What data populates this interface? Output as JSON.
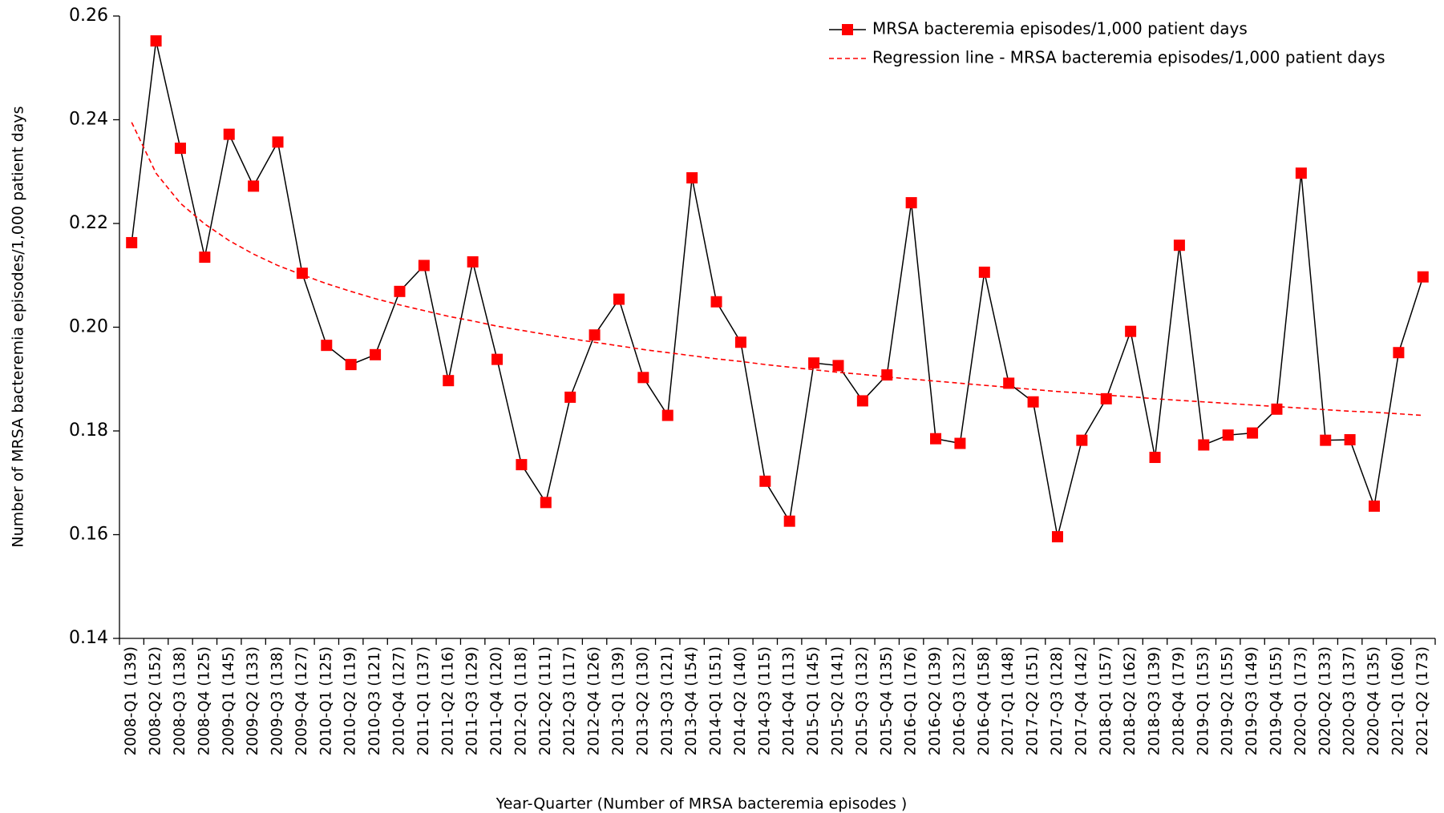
{
  "chart_data": {
    "type": "line",
    "y_label": "Number of MRSA bacteremia episodes/1,000 patient days",
    "x_label": "Year-Quarter (Number of MRSA bacteremia episodes )",
    "categories": [
      "2008-Q1 (139)",
      "2008-Q2 (152)",
      "2008-Q3 (138)",
      "2008-Q4 (125)",
      "2009-Q1 (145)",
      "2009-Q2 (133)",
      "2009-Q3 (138)",
      "2009-Q4 (127)",
      "2010-Q1 (125)",
      "2010-Q2 (119)",
      "2010-Q3 (121)",
      "2010-Q4 (127)",
      "2011-Q1 (137)",
      "2011-Q2 (116)",
      "2011-Q3 (129)",
      "2011-Q4 (120)",
      "2012-Q1 (118)",
      "2012-Q2 (111)",
      "2012-Q3 (117)",
      "2012-Q4 (126)",
      "2013-Q1 (139)",
      "2013-Q2 (130)",
      "2013-Q3 (121)",
      "2013-Q4 (154)",
      "2014-Q1 (151)",
      "2014-Q2 (140)",
      "2014-Q3 (115)",
      "2014-Q4 (113)",
      "2015-Q1 (145)",
      "2015-Q2 (141)",
      "2015-Q3 (132)",
      "2015-Q4 (135)",
      "2016-Q1 (176)",
      "2016-Q2 (139)",
      "2016-Q3 (132)",
      "2016-Q4 (158)",
      "2017-Q1 (148)",
      "2017-Q2 (151)",
      "2017-Q3 (128)",
      "2017-Q4 (142)",
      "2018-Q1 (157)",
      "2018-Q2 (162)",
      "2018-Q3 (139)",
      "2018-Q4 (179)",
      "2019-Q1 (153)",
      "2019-Q2 (155)",
      "2019-Q3 (149)",
      "2019-Q4 (155)",
      "2020-Q1 (173)",
      "2020-Q2 (133)",
      "2020-Q3 (137)",
      "2020-Q4 (135)",
      "2021-Q1 (160)",
      "2021-Q2 (173)"
    ],
    "series": [
      {
        "name": "MRSA bacteremia episodes/1,000 patient days",
        "color": "#ff0000",
        "line_color": "#000000",
        "values": [
          0.2163,
          0.2552,
          0.2345,
          0.2135,
          0.2372,
          0.2272,
          0.2357,
          0.2104,
          0.1965,
          0.1928,
          0.1947,
          0.2069,
          0.2119,
          0.1897,
          0.2126,
          0.1938,
          0.1735,
          0.1662,
          0.1865,
          0.1985,
          0.2054,
          0.1903,
          0.183,
          0.2288,
          0.2049,
          0.1971,
          0.1703,
          0.1626,
          0.1931,
          0.1926,
          0.1858,
          0.1908,
          0.224,
          0.1785,
          0.1776,
          0.2106,
          0.1892,
          0.1856,
          0.1596,
          0.1782,
          0.1862,
          0.1992,
          0.1749,
          0.2158,
          0.1773,
          0.1792,
          0.1796,
          0.1842,
          0.2297,
          0.1782,
          0.1783,
          0.1655,
          0.1951,
          0.2097
        ]
      },
      {
        "name": "Regression line - MRSA bacteremia episodes/1,000 patient days",
        "color": "#ff0000",
        "dashed": true,
        "values": [
          0.2395,
          0.2297,
          0.2239,
          0.2199,
          0.2167,
          0.2141,
          0.2119,
          0.2101,
          0.2084,
          0.2069,
          0.2055,
          0.2043,
          0.2032,
          0.2021,
          0.2012,
          0.2002,
          0.1994,
          0.1986,
          0.1978,
          0.1971,
          0.1964,
          0.1957,
          0.1951,
          0.1945,
          0.1939,
          0.1934,
          0.1928,
          0.1923,
          0.1918,
          0.1913,
          0.1909,
          0.1904,
          0.19,
          0.1896,
          0.1892,
          0.1888,
          0.1884,
          0.188,
          0.1876,
          0.1873,
          0.1869,
          0.1866,
          0.1862,
          0.1859,
          0.1856,
          0.1853,
          0.185,
          0.1847,
          0.1844,
          0.1841,
          0.1838,
          0.1836,
          0.1833,
          0.183
        ]
      }
    ],
    "ylim": [
      0.14,
      0.26
    ],
    "yticks": [
      0.14,
      0.16,
      0.18,
      {
        "value": 0.2,
        "label": "0.20"
      },
      0.22,
      0.24,
      0.26
    ],
    "grid": false,
    "legend": "top-right"
  }
}
